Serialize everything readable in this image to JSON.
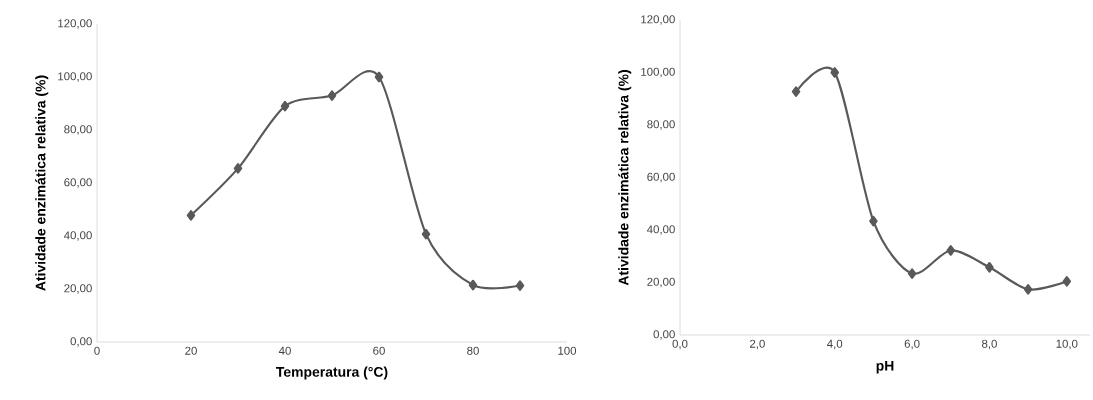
{
  "chart_data": [
    {
      "type": "line",
      "xlabel": "Temperatura (°C)",
      "ylabel": "Atividade enzimática  relativa (%)",
      "x": [
        20,
        30,
        40,
        50,
        60,
        70,
        80,
        90
      ],
      "series": [
        {
          "color": "#595959",
          "values": [
            47.8,
            65.5,
            89.0,
            93.0,
            100.0,
            40.7,
            21.5,
            21.3
          ]
        }
      ],
      "xlim": [
        0,
        100
      ],
      "xticks": [
        0,
        20,
        40,
        60,
        80,
        100
      ],
      "ylim": [
        0,
        120
      ],
      "yticks": [
        {
          "value": 0,
          "label": "0,00"
        },
        {
          "value": 20,
          "label": "20,00"
        },
        {
          "value": 40,
          "label": "40,00"
        },
        {
          "value": 60,
          "label": "60,00"
        },
        {
          "value": 80,
          "label": "80,00"
        },
        {
          "value": 100,
          "label": "100,00"
        },
        {
          "value": 120,
          "label": "120,00"
        }
      ],
      "marker": "diamond",
      "line_style": "solid"
    },
    {
      "type": "line",
      "xlabel": "pH",
      "ylabel": "Atividade enzimática  relativa (%)",
      "x": [
        3,
        4,
        5,
        6,
        7,
        8,
        9,
        10
      ],
      "series": [
        {
          "color": "#595959",
          "values": [
            92.7,
            100.0,
            43.4,
            23.4,
            32.2,
            25.8,
            17.4,
            20.4
          ]
        }
      ],
      "xlim": [
        0,
        10.6
      ],
      "xticks": [
        {
          "value": 0,
          "label": "0,0"
        },
        {
          "value": 2,
          "label": "2,0"
        },
        {
          "value": 4,
          "label": "4,0"
        },
        {
          "value": 6,
          "label": "6,0"
        },
        {
          "value": 8,
          "label": "8,0"
        },
        {
          "value": 10,
          "label": "10,0"
        }
      ],
      "ylim": [
        0,
        120
      ],
      "yticks": [
        {
          "value": 0,
          "label": "0,00"
        },
        {
          "value": 20,
          "label": "20,00"
        },
        {
          "value": 40,
          "label": "40,00"
        },
        {
          "value": 60,
          "label": "60,00"
        },
        {
          "value": 80,
          "label": "80,00"
        },
        {
          "value": 100,
          "label": "100,00"
        },
        {
          "value": 120,
          "label": "120,00"
        }
      ],
      "marker": "diamond",
      "line_style": "solid"
    }
  ]
}
